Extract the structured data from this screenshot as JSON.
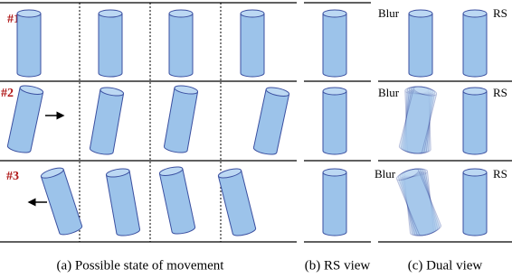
{
  "rows": [
    {
      "label": "#1"
    },
    {
      "label": "#2"
    },
    {
      "label": "#3"
    }
  ],
  "dual_view": [
    {
      "left": "Blur",
      "right": "RS"
    },
    {
      "left": "Blur",
      "right": "RS"
    },
    {
      "left": "Blur",
      "right": "RS"
    }
  ],
  "captions": [
    "(a) Possible state of movement",
    "(b) RS view",
    "(c) Dual view"
  ]
}
